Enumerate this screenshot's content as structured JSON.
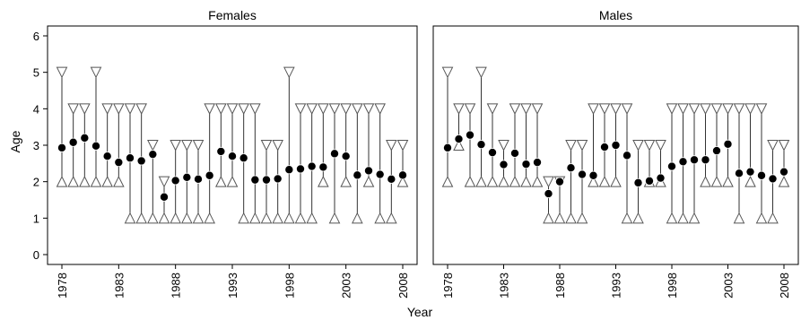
{
  "chart_data": [
    {
      "type": "scatter",
      "title": "Females",
      "xlabel": "Year",
      "ylabel": "Age",
      "xlim": [
        1978,
        2008
      ],
      "ylim": [
        0,
        6
      ],
      "xticks": [
        1978,
        1983,
        1988,
        1993,
        1998,
        2003,
        2008
      ],
      "yticks": [
        0,
        1,
        2,
        3,
        4,
        5,
        6
      ],
      "series": [
        {
          "marker": "filled-circle",
          "x": [
            1978,
            1979,
            1980,
            1981,
            1982,
            1983,
            1984,
            1985,
            1986,
            1987,
            1988,
            1989,
            1990,
            1991,
            1992,
            1993,
            1994,
            1995,
            1996,
            1997,
            1998,
            1999,
            2000,
            2001,
            2002,
            2003,
            2004,
            2005,
            2006,
            2007,
            2008
          ],
          "y": [
            2.93,
            3.08,
            3.2,
            2.98,
            2.7,
            2.53,
            2.65,
            2.57,
            2.75,
            1.58,
            2.03,
            2.12,
            2.07,
            2.17,
            2.83,
            2.7,
            2.65,
            2.05,
            2.05,
            2.08,
            2.33,
            2.35,
            2.42,
            2.4,
            2.77,
            2.7,
            2.18,
            2.3,
            2.2,
            2.07,
            2.18
          ]
        },
        {
          "marker": "open-triangle-down",
          "x": [
            1978,
            1979,
            1980,
            1981,
            1982,
            1983,
            1984,
            1985,
            1986,
            1987,
            1988,
            1989,
            1990,
            1991,
            1992,
            1993,
            1994,
            1995,
            1996,
            1997,
            1998,
            1999,
            2000,
            2001,
            2002,
            2003,
            2004,
            2005,
            2006,
            2007,
            2008
          ],
          "y": [
            5,
            4,
            4,
            5,
            4,
            4,
            4,
            4,
            3,
            2,
            3,
            3,
            3,
            4,
            4,
            4,
            4,
            4,
            3,
            3,
            5,
            4,
            4,
            4,
            4,
            4,
            4,
            4,
            4,
            3,
            3
          ]
        },
        {
          "marker": "open-triangle-up",
          "x": [
            1978,
            1979,
            1980,
            1981,
            1982,
            1983,
            1984,
            1985,
            1986,
            1987,
            1988,
            1989,
            1990,
            1991,
            1992,
            1993,
            1994,
            1995,
            1996,
            1997,
            1998,
            1999,
            2000,
            2001,
            2002,
            2003,
            2004,
            2005,
            2006,
            2007,
            2008
          ],
          "y": [
            2,
            2,
            2,
            2,
            2,
            2,
            1,
            1,
            1,
            1,
            1,
            1,
            1,
            1,
            2,
            2,
            1,
            1,
            1,
            1,
            1,
            1,
            1,
            2,
            1,
            2,
            1,
            2,
            1,
            1,
            2
          ]
        }
      ]
    },
    {
      "type": "scatter",
      "title": "Males",
      "xlabel": "Year",
      "ylabel": "Age",
      "xlim": [
        1978,
        2008
      ],
      "ylim": [
        0,
        6
      ],
      "xticks": [
        1978,
        1983,
        1988,
        1993,
        1998,
        2003,
        2008
      ],
      "yticks": [
        0,
        1,
        2,
        3,
        4,
        5,
        6
      ],
      "series": [
        {
          "marker": "filled-circle",
          "x": [
            1978,
            1979,
            1980,
            1981,
            1982,
            1983,
            1984,
            1985,
            1986,
            1987,
            1988,
            1989,
            1990,
            1991,
            1992,
            1993,
            1994,
            1995,
            1996,
            1997,
            1998,
            1999,
            2000,
            2001,
            2002,
            2003,
            2004,
            2005,
            2006,
            2007,
            2008
          ],
          "y": [
            2.93,
            3.17,
            3.28,
            3.02,
            2.8,
            2.47,
            2.78,
            2.48,
            2.53,
            1.67,
            2.0,
            2.38,
            2.2,
            2.17,
            2.95,
            3.0,
            2.72,
            1.97,
            2.02,
            2.1,
            2.42,
            2.55,
            2.6,
            2.6,
            2.85,
            3.03,
            2.23,
            2.27,
            2.17,
            2.08,
            2.27
          ]
        },
        {
          "marker": "open-triangle-down",
          "x": [
            1978,
            1979,
            1980,
            1981,
            1982,
            1983,
            1984,
            1985,
            1986,
            1987,
            1988,
            1989,
            1990,
            1991,
            1992,
            1993,
            1994,
            1995,
            1996,
            1997,
            1998,
            1999,
            2000,
            2001,
            2002,
            2003,
            2004,
            2005,
            2006,
            2007,
            2008
          ],
          "y": [
            5,
            4,
            4,
            5,
            4,
            3,
            4,
            4,
            4,
            2,
            2,
            3,
            3,
            4,
            4,
            4,
            4,
            3,
            3,
            3,
            4,
            4,
            4,
            4,
            4,
            4,
            4,
            4,
            4,
            3,
            3
          ]
        },
        {
          "marker": "open-triangle-up",
          "x": [
            1978,
            1979,
            1980,
            1981,
            1982,
            1983,
            1984,
            1985,
            1986,
            1987,
            1988,
            1989,
            1990,
            1991,
            1992,
            1993,
            1994,
            1995,
            1996,
            1997,
            1998,
            1999,
            2000,
            2001,
            2002,
            2003,
            2004,
            2005,
            2006,
            2007,
            2008
          ],
          "y": [
            2,
            3,
            2,
            2,
            2,
            2,
            2,
            2,
            2,
            1,
            1,
            1,
            1,
            2,
            2,
            2,
            1,
            1,
            2,
            2,
            1,
            1,
            1,
            2,
            2,
            2,
            1,
            2,
            1,
            1,
            2
          ]
        }
      ]
    }
  ]
}
